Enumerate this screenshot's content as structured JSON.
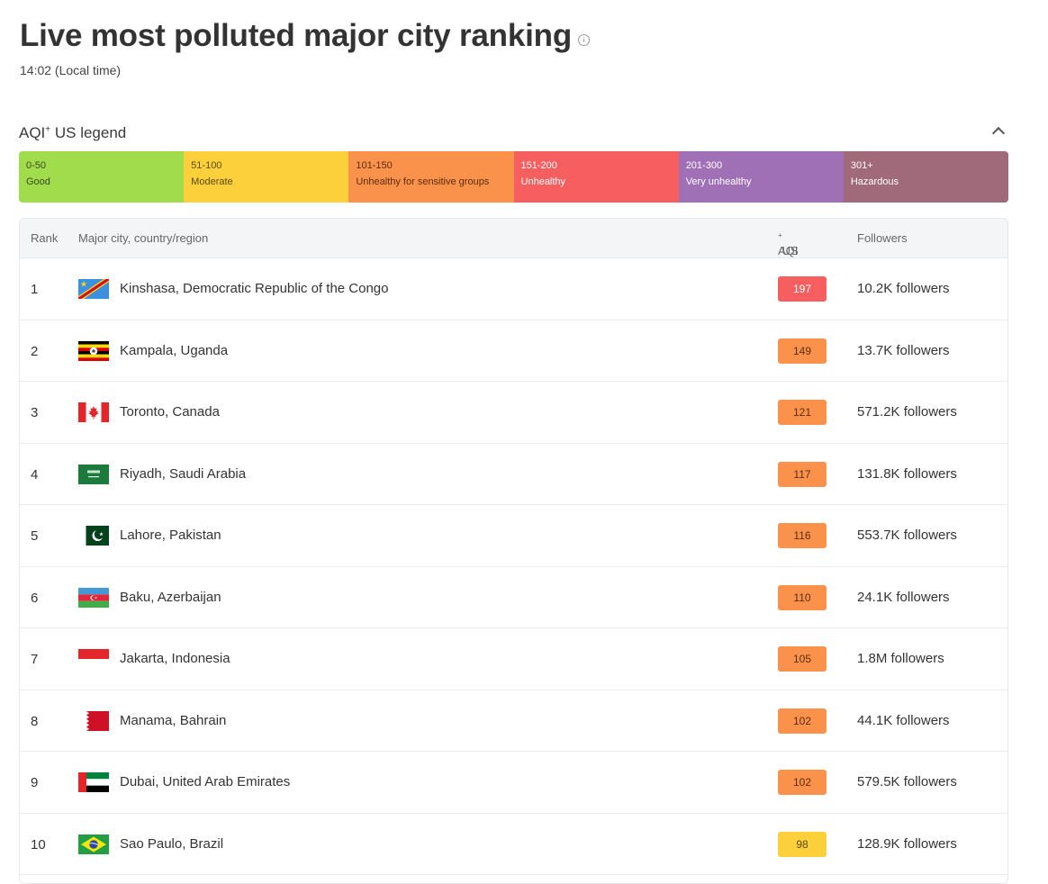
{
  "page": {
    "title": "Live most polluted major city ranking",
    "local_time": "14:02 (Local time)"
  },
  "legend": {
    "title_prefix": "AQI",
    "title_sup": "+",
    "title_suffix": " US legend",
    "items": [
      {
        "range": "0-50",
        "label": "Good",
        "color": "#a0dc4c",
        "text_color": "#3b4a1d"
      },
      {
        "range": "51-100",
        "label": "Moderate",
        "color": "#fbd03a",
        "text_color": "#5c4a10"
      },
      {
        "range": "101-150",
        "label": "Unhealthy for sensitive groups",
        "color": "#fb924c",
        "text_color": "#5a2e10"
      },
      {
        "range": "151-200",
        "label": "Unhealthy",
        "color": "#f65e5f",
        "text_color": "#ffffff"
      },
      {
        "range": "201-300",
        "label": "Very unhealthy",
        "color": "#a070b6",
        "text_color": "#ffffff"
      },
      {
        "range": "301+",
        "label": "Hazardous",
        "color": "#a06a7b",
        "text_color": "#ffffff"
      }
    ]
  },
  "table": {
    "headers": {
      "rank": "Rank",
      "city": "Major city, country/region",
      "aqi_prefix": "AQI",
      "aqi_sup": "+",
      "aqi_suffix": " US",
      "followers": "Followers"
    },
    "rows": [
      {
        "rank": "1",
        "flag": "flag-drc",
        "city": "Kinshasa, Democratic Republic of the Congo",
        "aqi": "197",
        "aqi_color": "#f65e5f",
        "aqi_text": "#ffffff",
        "followers": "10.2K followers"
      },
      {
        "rank": "2",
        "flag": "flag-uganda",
        "city": "Kampala, Uganda",
        "aqi": "149",
        "aqi_color": "#fb924c",
        "aqi_text": "#5a2e10",
        "followers": "13.7K followers"
      },
      {
        "rank": "3",
        "flag": "flag-canada",
        "city": "Toronto, Canada",
        "aqi": "121",
        "aqi_color": "#fb924c",
        "aqi_text": "#5a2e10",
        "followers": "571.2K followers"
      },
      {
        "rank": "4",
        "flag": "flag-saudi-arabia",
        "city": "Riyadh, Saudi Arabia",
        "aqi": "117",
        "aqi_color": "#fb924c",
        "aqi_text": "#5a2e10",
        "followers": "131.8K followers"
      },
      {
        "rank": "5",
        "flag": "flag-pakistan",
        "city": "Lahore, Pakistan",
        "aqi": "116",
        "aqi_color": "#fb924c",
        "aqi_text": "#5a2e10",
        "followers": "553.7K followers"
      },
      {
        "rank": "6",
        "flag": "flag-azerbaijan",
        "city": "Baku, Azerbaijan",
        "aqi": "110",
        "aqi_color": "#fb924c",
        "aqi_text": "#5a2e10",
        "followers": "24.1K followers"
      },
      {
        "rank": "7",
        "flag": "flag-indonesia",
        "city": "Jakarta, Indonesia",
        "aqi": "105",
        "aqi_color": "#fb924c",
        "aqi_text": "#5a2e10",
        "followers": "1.8M followers"
      },
      {
        "rank": "8",
        "flag": "flag-bahrain",
        "city": "Manama, Bahrain",
        "aqi": "102",
        "aqi_color": "#fb924c",
        "aqi_text": "#5a2e10",
        "followers": "44.1K followers"
      },
      {
        "rank": "9",
        "flag": "flag-uae",
        "city": "Dubai, United Arab Emirates",
        "aqi": "102",
        "aqi_color": "#fb924c",
        "aqi_text": "#5a2e10",
        "followers": "579.5K followers"
      },
      {
        "rank": "10",
        "flag": "flag-brazil",
        "city": "Sao Paulo, Brazil",
        "aqi": "98",
        "aqi_color": "#fbd03a",
        "aqi_text": "#5c4a10",
        "followers": "128.9K followers"
      }
    ]
  }
}
